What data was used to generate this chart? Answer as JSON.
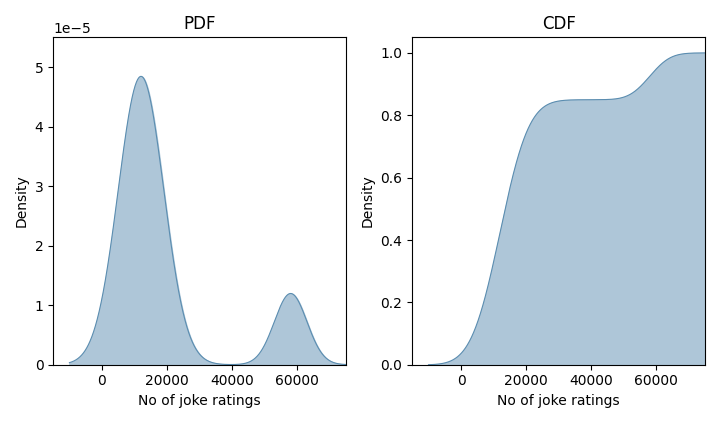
{
  "title_pdf": "PDF",
  "title_cdf": "CDF",
  "xlabel": "No of joke ratings",
  "ylabel": "Density",
  "fill_color": "#aec6d8",
  "line_color": "#5b8db0",
  "fig_width": 7.2,
  "fig_height": 4.23,
  "dpi": 100,
  "pdf_ylim": [
    0,
    5.5e-05
  ],
  "cdf_ylim": [
    0,
    1.05
  ],
  "x_min": -10000,
  "x_max": 75000,
  "peak1_mean": 12000,
  "peak1_std": 7000,
  "peak1_weight": 0.85,
  "peak2_mean": 58000,
  "peak2_std": 5000,
  "peak2_weight": 0.15
}
